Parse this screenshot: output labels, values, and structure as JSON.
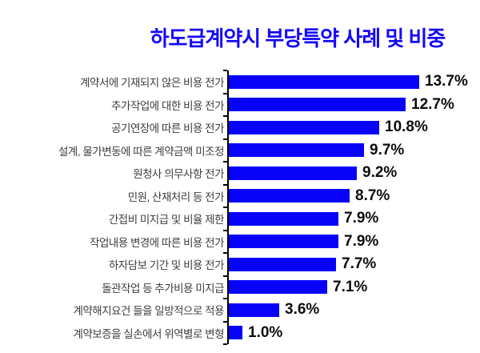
{
  "title": "하도급계약시 부당특약 사례 및 비중",
  "colors": {
    "bar": "#0803f8",
    "title": "#1508fa",
    "axis": "#000000",
    "category_text": "#3d3d3d",
    "value_text": "#0d0d0d",
    "background": "#ffffff"
  },
  "chart_data": {
    "type": "bar",
    "orientation": "horizontal",
    "title": "하도급계약시 부당특약 사례 및 비중",
    "xlabel": "",
    "ylabel": "",
    "xlim": [
      0,
      14.5
    ],
    "grid": false,
    "legend": false,
    "value_suffix": "%",
    "categories": [
      "계약서에 기재되지 않은 비용 전가",
      "추가작업에 대한 비용 전가",
      "공기연장에 따른 비용 전가",
      "설계, 물가변동에 따른 계약금액 미조정",
      "원청사 의무사항 전가",
      "민원, 산재처리 등 전가",
      "간접비 미지급 및 비율 제한",
      "작업내용 변경에 따른 비용 전가",
      "하자담보 기간 및 비용 전가",
      "돌관작업 등 추가비용 미지급",
      "계약해지요건 들을 일방적으로 적용",
      "계약보증을 실손에서 위역별로 변형"
    ],
    "values": [
      13.7,
      12.7,
      10.8,
      9.7,
      9.2,
      8.7,
      7.9,
      7.9,
      7.7,
      7.1,
      3.6,
      1.0
    ],
    "value_labels": [
      "13.7%",
      "12.7%",
      "10.8%",
      "9.7%",
      "9.2%",
      "8.7%",
      "7.9%",
      "7.9%",
      "7.7%",
      "7.1%",
      "3.6%",
      "1.0%"
    ]
  }
}
